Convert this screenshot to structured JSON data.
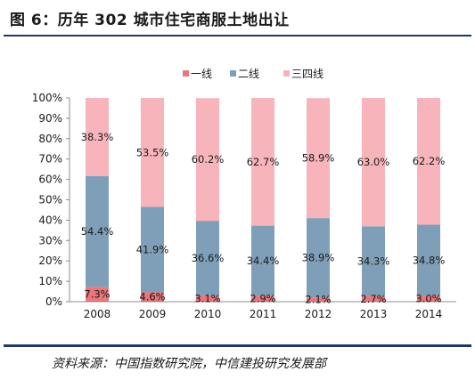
{
  "figure": {
    "title": "图 6：历年 302 城市住宅商服土地出让",
    "source": "资料来源：中国指数研究院，中信建投研究发展部"
  },
  "chart_data": {
    "type": "bar",
    "stacked": true,
    "categories": [
      "2008",
      "2009",
      "2010",
      "2011",
      "2012",
      "2013",
      "2014"
    ],
    "series": [
      {
        "name": "一线",
        "color": "#e8767b",
        "values": [
          7.3,
          4.6,
          3.1,
          2.9,
          2.1,
          2.7,
          3.0
        ]
      },
      {
        "name": "二线",
        "color": "#7f9fb8",
        "values": [
          54.4,
          41.9,
          36.6,
          34.4,
          38.9,
          34.3,
          34.8
        ]
      },
      {
        "name": "三四线",
        "color": "#f8b4bb",
        "values": [
          38.3,
          53.5,
          60.2,
          62.7,
          58.9,
          63.0,
          62.2
        ]
      }
    ],
    "ylim": [
      0,
      100
    ],
    "yticks": [
      "0%",
      "10%",
      "20%",
      "30%",
      "40%",
      "50%",
      "60%",
      "70%",
      "80%",
      "90%",
      "100%"
    ],
    "data_labels": [
      [
        "7.3%",
        "4.6%",
        "3.1%",
        "2.9%",
        "2.1%",
        "2.7%",
        "3.0%"
      ],
      [
        "54.4%",
        "41.9%",
        "36.6%",
        "34.4%",
        "38.9%",
        "34.3%",
        "34.8%"
      ],
      [
        "38.3%",
        "53.5%",
        "60.2%",
        "62.7%",
        "58.9%",
        "63.0%",
        "62.2%"
      ]
    ],
    "legend_position": "top",
    "grid": false
  }
}
